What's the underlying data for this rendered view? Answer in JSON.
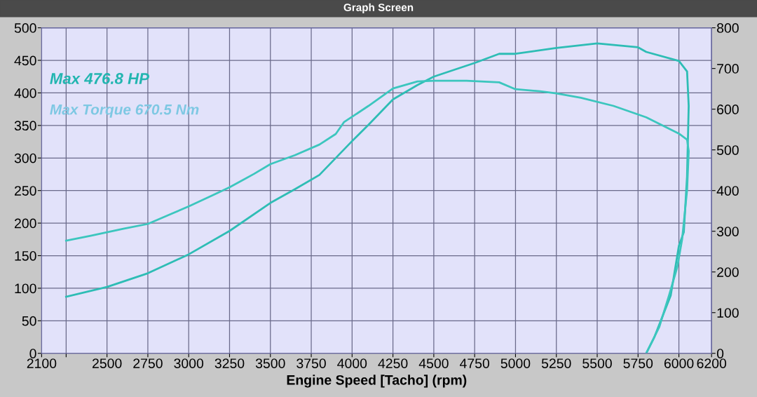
{
  "chart_data": {
    "type": "line",
    "title": "Graph Screen",
    "xlabel": "Engine Speed [Tacho] (rpm)",
    "xlim": [
      2100,
      6200
    ],
    "xticks": [
      2100,
      {
        "value": 2250,
        "label": null
      },
      2500,
      2750,
      3000,
      3250,
      3500,
      3750,
      4000,
      4250,
      4500,
      4750,
      5000,
      5250,
      5500,
      5750,
      6000,
      6200
    ],
    "ylim": [
      0,
      500
    ],
    "yticks": [
      0,
      50,
      100,
      150,
      200,
      250,
      300,
      350,
      400,
      450,
      500
    ],
    "y2lim": [
      0,
      800
    ],
    "y2ticks": [
      0,
      100,
      200,
      300,
      400,
      500,
      600,
      700,
      800
    ],
    "grid": true,
    "annotations": [
      "Max 476.8 HP",
      "Max Torque 670.5 Nm"
    ],
    "series": [
      {
        "color": "#2ebdb5",
        "x": [
          2250,
          2500,
          2750,
          3000,
          3250,
          3500,
          3650,
          3800,
          4000,
          4100,
          4250,
          4400,
          4500,
          4750,
          4900,
          5000,
          5250,
          5500,
          5750,
          5800,
          6000,
          6050,
          6060,
          6050,
          6030,
          6000,
          5950,
          5850,
          5800
        ],
        "values": [
          87,
          102,
          123,
          152,
          188,
          231,
          252,
          274,
          326,
          351,
          390,
          412,
          425,
          446,
          460,
          460,
          469,
          476,
          470,
          463,
          449,
          433,
          380,
          272,
          186,
          165,
          89,
          25,
          0
        ]
      },
      {
        "color": "#3cc6be",
        "axis": "y2",
        "x": [
          2250,
          2400,
          2600,
          2750,
          2900,
          3000,
          3150,
          3250,
          3400,
          3500,
          3650,
          3800,
          3900,
          3950,
          4100,
          4250,
          4400,
          4500,
          4700,
          4900,
          5000,
          5150,
          5250,
          5400,
          5600,
          5800,
          6000,
          6050,
          6060,
          6050,
          6020,
          5990,
          5940,
          5880,
          5800
        ],
        "values": [
          277,
          289,
          306,
          318,
          344,
          361,
          389,
          408,
          441,
          465,
          487,
          513,
          539,
          568,
          608,
          651,
          668,
          670,
          670,
          666,
          649,
          644,
          639,
          628,
          608,
          580,
          540,
          525,
          497,
          401,
          281,
          212,
          143,
          65,
          0
        ]
      }
    ]
  }
}
